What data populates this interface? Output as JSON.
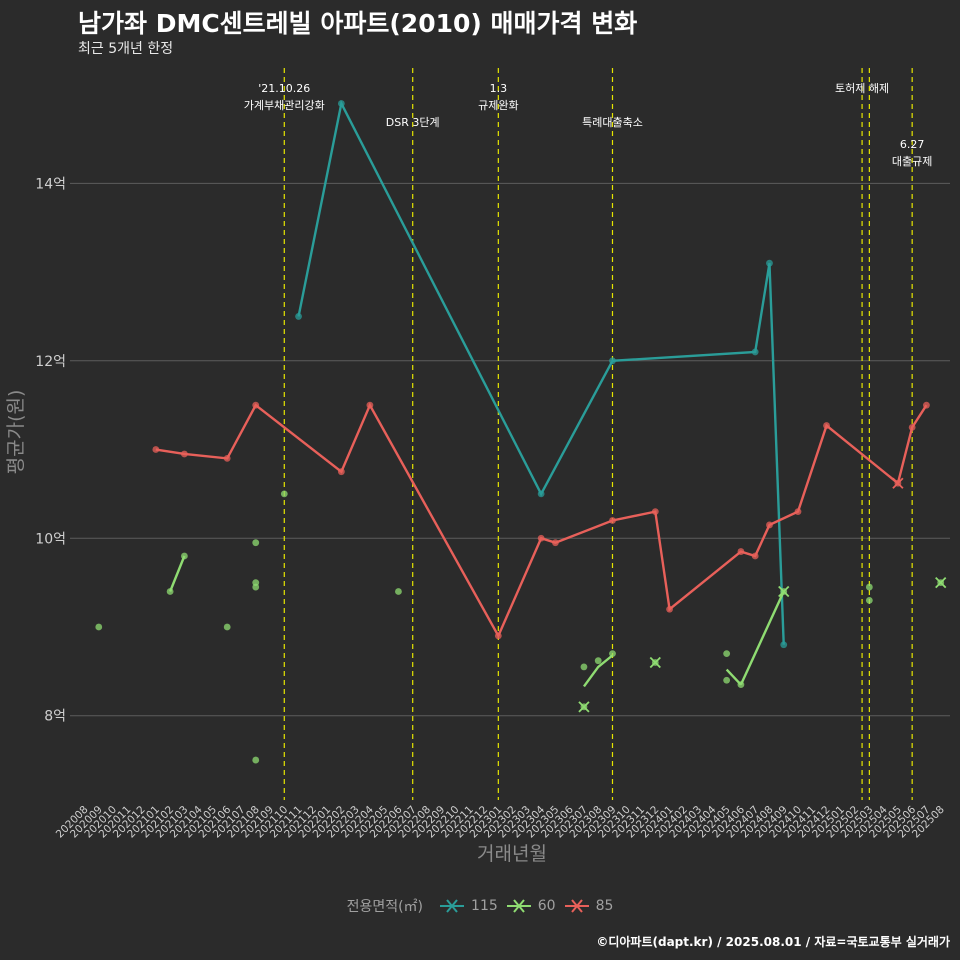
{
  "chart_data": {
    "type": "line",
    "title": "남가좌 DMC센트레빌 아파트(2010) 매매가격 변화",
    "subtitle": "최근 5개년 한정",
    "xlabel": "거래년월",
    "ylabel": "평균가(원)",
    "caption": "©디아파트(dapt.kr) / 2025.08.01 / 자료=국토교통부 실거래가",
    "legend_title": "전용면적(㎡)",
    "legend_position": "bottom",
    "grid": true,
    "x_categories": [
      "202008",
      "202009",
      "202010",
      "202011",
      "202012",
      "202101",
      "202102",
      "202103",
      "202104",
      "202105",
      "202106",
      "202107",
      "202108",
      "202109",
      "202110",
      "202111",
      "202112",
      "202201",
      "202202",
      "202203",
      "202204",
      "202205",
      "202206",
      "202207",
      "202208",
      "202209",
      "202210",
      "202211",
      "202212",
      "202301",
      "202302",
      "202303",
      "202304",
      "202305",
      "202306",
      "202307",
      "202308",
      "202309",
      "202310",
      "202311",
      "202312",
      "202401",
      "202402",
      "202403",
      "202404",
      "202405",
      "202406",
      "202407",
      "202408",
      "202409",
      "202410",
      "202411",
      "202412",
      "202501",
      "202502",
      "202503",
      "202504",
      "202505",
      "202506",
      "202507",
      "202508"
    ],
    "y_ticks": [
      {
        "value": 8,
        "label": "8억"
      },
      {
        "value": 10,
        "label": "10억"
      },
      {
        "value": 12,
        "label": "12억"
      },
      {
        "value": 14,
        "label": "14억"
      }
    ],
    "ylim": [
      7.05,
      15.3
    ],
    "series": [
      {
        "name": "115",
        "color": "#2a9d99",
        "line": [
          [
            "202111",
            12.5
          ],
          [
            "202202",
            14.9
          ],
          [
            "202304",
            10.5
          ],
          [
            "202309",
            12.0
          ],
          [
            "202407",
            12.1
          ],
          [
            "202408",
            13.1
          ],
          [
            "202409",
            8.8
          ]
        ],
        "points": [
          [
            "202111",
            12.5
          ],
          [
            "202202",
            14.9
          ],
          [
            "202304",
            10.5
          ],
          [
            "202309",
            12.0
          ],
          [
            "202407",
            12.1
          ],
          [
            "202408",
            13.1
          ],
          [
            "202409",
            8.8
          ]
        ],
        "markers_x": []
      },
      {
        "name": "60",
        "color": "#8fdc72",
        "line": [
          [
            "202102",
            9.4
          ],
          [
            "202103",
            9.8
          ],
          [
            "202307",
            8.33
          ],
          [
            "202308",
            8.55
          ],
          [
            "202309",
            8.68
          ],
          [
            "202405",
            8.52
          ],
          [
            "202406",
            8.35
          ],
          [
            "202409",
            9.4
          ]
        ],
        "segments": [
          [
            "202102",
            "202103"
          ],
          [
            "202307",
            "202309"
          ],
          [
            "202405",
            "202406"
          ],
          [
            "202406",
            "202409"
          ]
        ],
        "points": [
          [
            "202009",
            9.0
          ],
          [
            "202102",
            9.4
          ],
          [
            "202103",
            9.8
          ],
          [
            "202106",
            9.0
          ],
          [
            "202108",
            9.95
          ],
          [
            "202108",
            9.5
          ],
          [
            "202108",
            9.45
          ],
          [
            "202108",
            7.5
          ],
          [
            "202110",
            10.5
          ],
          [
            "202206",
            9.4
          ],
          [
            "202307",
            8.55
          ],
          [
            "202307",
            8.1
          ],
          [
            "202308",
            8.62
          ],
          [
            "202309",
            8.7
          ],
          [
            "202312",
            8.6
          ],
          [
            "202405",
            8.7
          ],
          [
            "202405",
            8.4
          ],
          [
            "202406",
            8.35
          ],
          [
            "202409",
            9.4
          ],
          [
            "202503",
            9.45
          ],
          [
            "202503",
            9.3
          ],
          [
            "202508",
            9.5
          ]
        ],
        "markers_x": [
          [
            "202307",
            8.1
          ],
          [
            "202312",
            8.6
          ],
          [
            "202409",
            9.4
          ],
          [
            "202508",
            9.5
          ]
        ]
      },
      {
        "name": "85",
        "color": "#e8605a",
        "line": [
          [
            "202101",
            11.0
          ],
          [
            "202103",
            10.95
          ],
          [
            "202106",
            10.9
          ],
          [
            "202108",
            11.5
          ],
          [
            "202202",
            10.75
          ],
          [
            "202204",
            11.5
          ],
          [
            "202301",
            8.9
          ],
          [
            "202304",
            10.0
          ],
          [
            "202305",
            9.95
          ],
          [
            "202309",
            10.2
          ],
          [
            "202312",
            10.3
          ],
          [
            "202401",
            9.2
          ],
          [
            "202406",
            9.85
          ],
          [
            "202407",
            9.8
          ],
          [
            "202408",
            10.15
          ],
          [
            "202410",
            10.3
          ],
          [
            "202412",
            11.27
          ],
          [
            "202505",
            10.62
          ],
          [
            "202506",
            11.25
          ],
          [
            "202507",
            11.5
          ]
        ],
        "points": [
          [
            "202101",
            11.0
          ],
          [
            "202103",
            10.95
          ],
          [
            "202106",
            10.9
          ],
          [
            "202108",
            11.5
          ],
          [
            "202202",
            10.75
          ],
          [
            "202204",
            11.5
          ],
          [
            "202301",
            8.9
          ],
          [
            "202304",
            10.0
          ],
          [
            "202305",
            9.95
          ],
          [
            "202309",
            10.2
          ],
          [
            "202312",
            10.3
          ],
          [
            "202401",
            9.2
          ],
          [
            "202406",
            9.85
          ],
          [
            "202407",
            9.8
          ],
          [
            "202408",
            10.15
          ],
          [
            "202410",
            10.3
          ],
          [
            "202412",
            11.27
          ],
          [
            "202505",
            10.62
          ],
          [
            "202506",
            11.25
          ],
          [
            "202507",
            11.5
          ]
        ],
        "markers_x": [
          [
            "202505",
            10.62
          ]
        ]
      }
    ],
    "annotations": [
      {
        "x": "202110",
        "lines": [
          "'21.10.26",
          "가계부채관리강화"
        ],
        "level": 0
      },
      {
        "x": "202207",
        "lines": [
          "DSR 3단계"
        ],
        "level": 1
      },
      {
        "x": "202301",
        "lines": [
          "1.3",
          "규제완화"
        ],
        "level": 0
      },
      {
        "x": "202309",
        "lines": [
          "특례대출축소"
        ],
        "level": 1
      },
      {
        "x": "202502",
        "lines": [
          "토허제 해제"
        ],
        "level": 0,
        "anchor": "202502.5",
        "noText": false
      },
      {
        "x": "202503",
        "lines": [],
        "level": 0
      },
      {
        "x": "202506",
        "lines": [
          "6.27",
          "대출규제"
        ],
        "level": 2
      }
    ]
  },
  "legend_items": [
    {
      "name": "115",
      "color": "#2a9d99"
    },
    {
      "name": "60",
      "color": "#8fdc72"
    },
    {
      "name": "85",
      "color": "#e8605a"
    }
  ]
}
